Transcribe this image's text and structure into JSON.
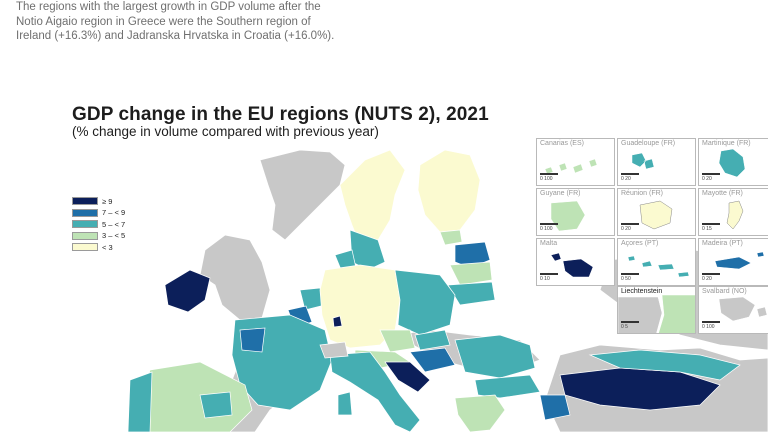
{
  "caption": "The regions with the largest growth in GDP volume after the Notio Aigaio region in Greece were the Southern region of Ireland (+16.3%) and Jadranska Hrvatska in Croatia (+16.0%).",
  "map": {
    "title": "GDP change in the EU regions (NUTS 2), 2021",
    "subtitle": "(% change in volume compared with previous year)",
    "legend": [
      {
        "label": "≥ 9",
        "color": "#0c1f5a"
      },
      {
        "label": "7 – < 9",
        "color": "#1f6fa8"
      },
      {
        "label": "5 – < 7",
        "color": "#45aeb2"
      },
      {
        "label": "3 – < 5",
        "color": "#bee3b5"
      },
      {
        "label": "< 3",
        "color": "#fbfad0"
      }
    ],
    "insets": [
      {
        "name": "Canarias (ES)",
        "scale": "0 100"
      },
      {
        "name": "Guadeloupe (FR)",
        "scale": "0 20"
      },
      {
        "name": "Martinique (FR)",
        "scale": "0 20"
      },
      {
        "name": "Guyane (FR)",
        "scale": "0 100"
      },
      {
        "name": "Réunion (FR)",
        "scale": "0 20"
      },
      {
        "name": "Mayotte (FR)",
        "scale": "0 15"
      },
      {
        "name": "Malta",
        "scale": "0 10"
      },
      {
        "name": "Açores (PT)",
        "scale": "0 50"
      },
      {
        "name": "Madeira (PT)",
        "scale": "0 20"
      },
      {
        "name": "Liechtenstein",
        "scale": "0 5"
      },
      {
        "name": "Svalbard (NO)",
        "scale": "0 100"
      }
    ],
    "colors": {
      "sea": "#ffffff",
      "land_non_eu": "#c8c8c8",
      "border": "#ffffff"
    }
  }
}
